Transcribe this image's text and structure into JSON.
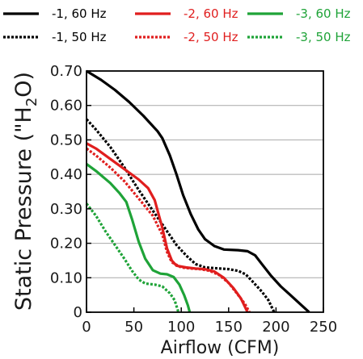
{
  "chart_data": {
    "type": "line",
    "title": "",
    "xlabel": "Airflow (CFM)",
    "ylabel_parts": [
      "Static Pressure (\"H",
      "2",
      "O)"
    ],
    "xlim": [
      0,
      250
    ],
    "ylim": [
      0,
      0.7
    ],
    "xticks": [
      0,
      50,
      100,
      150,
      200,
      250
    ],
    "xtick_labels": [
      "0",
      "50",
      "100",
      "150",
      "200",
      "250"
    ],
    "yticks": [
      0,
      0.1,
      0.2,
      0.3,
      0.4,
      0.5,
      0.6,
      0.7
    ],
    "ytick_labels": [
      "0",
      "0.10",
      "0.20",
      "0.30",
      "0.40",
      "0.50",
      "0.60",
      "0.70"
    ],
    "grid": "horizontal",
    "legend_position": "top",
    "series": [
      {
        "name": "-1, 60 Hz",
        "color": "#000000",
        "dash": "solid",
        "points": [
          [
            0,
            0.7
          ],
          [
            15,
            0.675
          ],
          [
            30,
            0.645
          ],
          [
            45,
            0.61
          ],
          [
            60,
            0.57
          ],
          [
            75,
            0.525
          ],
          [
            80,
            0.505
          ],
          [
            88,
            0.455
          ],
          [
            95,
            0.4
          ],
          [
            102,
            0.34
          ],
          [
            110,
            0.285
          ],
          [
            118,
            0.24
          ],
          [
            125,
            0.212
          ],
          [
            135,
            0.192
          ],
          [
            145,
            0.182
          ],
          [
            160,
            0.18
          ],
          [
            170,
            0.177
          ],
          [
            178,
            0.165
          ],
          [
            185,
            0.14
          ],
          [
            195,
            0.105
          ],
          [
            205,
            0.075
          ],
          [
            215,
            0.05
          ],
          [
            225,
            0.025
          ],
          [
            235,
            0.0
          ]
        ]
      },
      {
        "name": "-1, 50 Hz",
        "color": "#000000",
        "dash": "dotted",
        "points": [
          [
            0,
            0.56
          ],
          [
            10,
            0.53
          ],
          [
            25,
            0.48
          ],
          [
            40,
            0.42
          ],
          [
            55,
            0.355
          ],
          [
            70,
            0.295
          ],
          [
            85,
            0.235
          ],
          [
            95,
            0.195
          ],
          [
            105,
            0.165
          ],
          [
            115,
            0.14
          ],
          [
            125,
            0.13
          ],
          [
            140,
            0.127
          ],
          [
            150,
            0.125
          ],
          [
            160,
            0.12
          ],
          [
            168,
            0.11
          ],
          [
            175,
            0.09
          ],
          [
            185,
            0.06
          ],
          [
            192,
            0.035
          ],
          [
            198,
            0.0
          ]
        ]
      },
      {
        "name": "-2, 60 Hz",
        "color": "#e01e1e",
        "dash": "solid",
        "points": [
          [
            0,
            0.49
          ],
          [
            10,
            0.475
          ],
          [
            25,
            0.445
          ],
          [
            40,
            0.415
          ],
          [
            55,
            0.385
          ],
          [
            65,
            0.36
          ],
          [
            72,
            0.325
          ],
          [
            80,
            0.245
          ],
          [
            85,
            0.185
          ],
          [
            90,
            0.15
          ],
          [
            95,
            0.135
          ],
          [
            105,
            0.13
          ],
          [
            115,
            0.127
          ],
          [
            125,
            0.125
          ],
          [
            135,
            0.118
          ],
          [
            145,
            0.1
          ],
          [
            155,
            0.07
          ],
          [
            163,
            0.04
          ],
          [
            170,
            0.0
          ]
        ]
      },
      {
        "name": "-2, 50 Hz",
        "color": "#e01e1e",
        "dash": "dotted",
        "points": [
          [
            0,
            0.475
          ],
          [
            10,
            0.455
          ],
          [
            25,
            0.42
          ],
          [
            40,
            0.38
          ],
          [
            55,
            0.33
          ],
          [
            70,
            0.28
          ],
          [
            80,
            0.225
          ],
          [
            85,
            0.175
          ],
          [
            90,
            0.145
          ],
          [
            100,
            0.13
          ],
          [
            110,
            0.127
          ],
          [
            120,
            0.125
          ],
          [
            130,
            0.12
          ],
          [
            140,
            0.108
          ],
          [
            150,
            0.085
          ],
          [
            160,
            0.05
          ],
          [
            167,
            0.025
          ],
          [
            172,
            0.0
          ]
        ]
      },
      {
        "name": "-3, 60 Hz",
        "color": "#1fa338",
        "dash": "solid",
        "points": [
          [
            0,
            0.43
          ],
          [
            10,
            0.41
          ],
          [
            25,
            0.375
          ],
          [
            35,
            0.345
          ],
          [
            42,
            0.32
          ],
          [
            48,
            0.27
          ],
          [
            55,
            0.205
          ],
          [
            62,
            0.155
          ],
          [
            70,
            0.122
          ],
          [
            78,
            0.112
          ],
          [
            85,
            0.11
          ],
          [
            92,
            0.102
          ],
          [
            98,
            0.08
          ],
          [
            103,
            0.05
          ],
          [
            107,
            0.02
          ],
          [
            109,
            0.0
          ]
        ]
      },
      {
        "name": "-3, 50 Hz",
        "color": "#1fa338",
        "dash": "dotted",
        "points": [
          [
            0,
            0.315
          ],
          [
            10,
            0.28
          ],
          [
            20,
            0.235
          ],
          [
            30,
            0.195
          ],
          [
            40,
            0.155
          ],
          [
            48,
            0.12
          ],
          [
            55,
            0.095
          ],
          [
            62,
            0.083
          ],
          [
            72,
            0.08
          ],
          [
            80,
            0.075
          ],
          [
            88,
            0.055
          ],
          [
            93,
            0.035
          ],
          [
            97,
            0.0
          ]
        ]
      }
    ]
  }
}
